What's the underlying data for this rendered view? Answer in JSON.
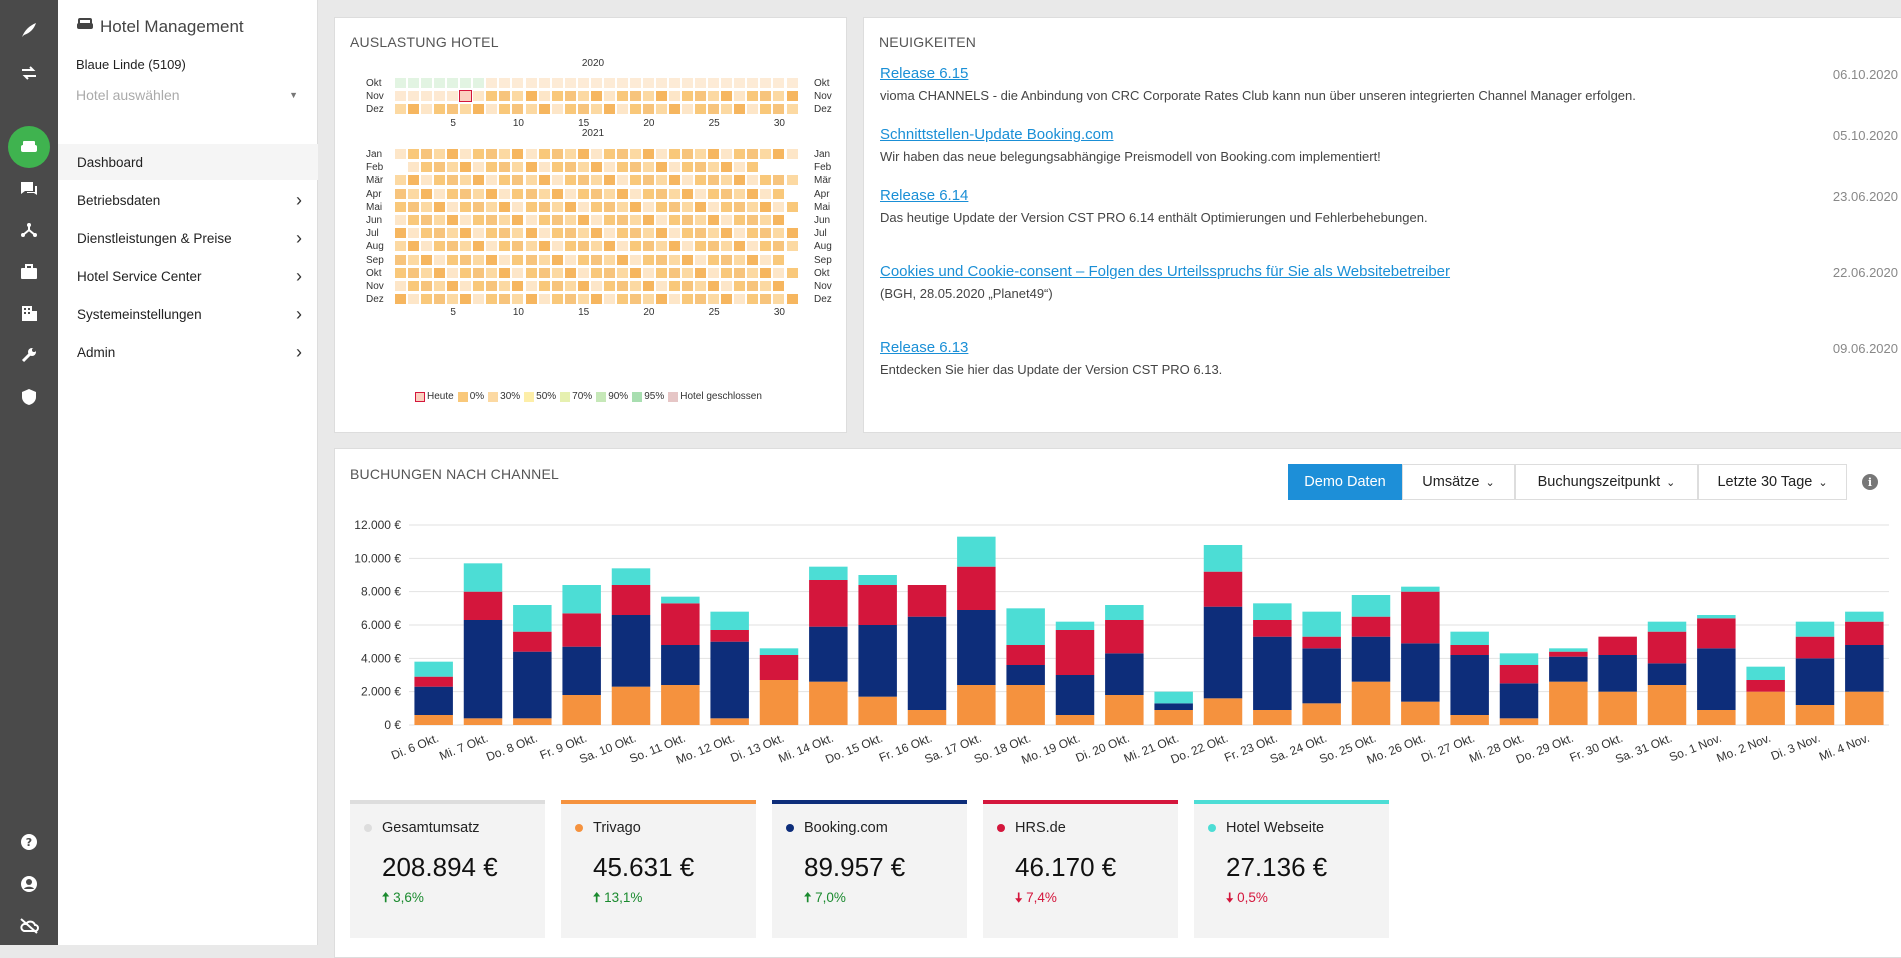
{
  "app": {
    "title": "Hotel Management",
    "hotel": "Blaue Linde (5109)",
    "hotel_select_placeholder": "Hotel auswählen"
  },
  "rail": {
    "icons": [
      "feather-icon",
      "swap-icon",
      "hotel-icon",
      "chat-icon",
      "network-icon",
      "briefcase-icon",
      "building-icon",
      "wrench-icon",
      "shield-icon",
      "help-icon",
      "user-icon",
      "cloud-off-icon"
    ]
  },
  "nav": [
    {
      "label": "Dashboard",
      "active": true,
      "has_children": false
    },
    {
      "label": "Betriebsdaten",
      "active": false,
      "has_children": true
    },
    {
      "label": "Dienstleistungen & Preise",
      "active": false,
      "has_children": true
    },
    {
      "label": "Hotel Service Center",
      "active": false,
      "has_children": true
    },
    {
      "label": "Systemeinstellungen",
      "active": false,
      "has_children": true
    },
    {
      "label": "Admin",
      "active": false,
      "has_children": true
    }
  ],
  "occupancy": {
    "title": "Auslastung Hotel",
    "years": [
      "2020",
      "2021"
    ],
    "rows_2020": [
      "Okt",
      "Nov",
      "Dez"
    ],
    "rows_2021": [
      "Jan",
      "Feb",
      "Mär",
      "Apr",
      "Mai",
      "Jun",
      "Jul",
      "Aug",
      "Sep",
      "Okt",
      "Nov",
      "Dez"
    ],
    "day_ticks": [
      "5",
      "10",
      "15",
      "20",
      "25",
      "30"
    ],
    "legend": [
      "Heute",
      "0%",
      "30%",
      "50%",
      "70%",
      "90%",
      "95%",
      "Hotel geschlossen"
    ]
  },
  "news": {
    "title": "Neuigkeiten",
    "items": [
      {
        "title": "Release 6.15",
        "date": "06.10.2020",
        "text": "vioma CHANNELS - die Anbindung von CRC Corporate Rates Club kann nun über unseren integrierten Channel Manager erfolgen."
      },
      {
        "title": "Schnittstellen-Update Booking.com",
        "date": "05.10.2020",
        "text": "Wir haben das neue belegungsabhängige Preismodell von Booking.com implementiert!"
      },
      {
        "title": "Release 6.14",
        "date": "23.06.2020",
        "text": "Das heutige Update der Version CST PRO 6.14 enthält Optimierungen und Fehlerbehebungen."
      },
      {
        "title": "Cookies und Cookie-consent – Folgen des Urteilsspruchs für Sie als Websitebetreiber",
        "date": "22.06.2020",
        "text": "(BGH, 28.05.2020 „Planet49“)"
      },
      {
        "title": "Release 6.13",
        "date": "09.06.2020",
        "text": "Entdecken Sie hier das Update der Version CST PRO 6.13."
      }
    ]
  },
  "bookings": {
    "title": "Buchungen nach Channel",
    "buttons": {
      "demo": "Demo Daten",
      "metric": "Umsätze",
      "time": "Buchungszeitpunkt",
      "range": "Letzte 30 Tage"
    },
    "info_icon": "info-icon"
  },
  "chart_data": {
    "type": "bar",
    "stacked": true,
    "categories": [
      "Di. 6 Okt.",
      "Mi. 7 Okt.",
      "Do. 8 Okt.",
      "Fr. 9 Okt.",
      "Sa. 10 Okt.",
      "So. 11 Okt.",
      "Mo. 12 Okt.",
      "Di. 13 Okt.",
      "Mi. 14 Okt.",
      "Do. 15 Okt.",
      "Fr. 16 Okt.",
      "Sa. 17 Okt.",
      "So. 18 Okt.",
      "Mo. 19 Okt.",
      "Di. 20 Okt.",
      "Mi. 21 Okt.",
      "Do. 22 Okt.",
      "Fr. 23 Okt.",
      "Sa. 24 Okt.",
      "So. 25 Okt.",
      "Mo. 26 Okt.",
      "Di. 27 Okt.",
      "Mi. 28 Okt.",
      "Do. 29 Okt.",
      "Fr. 30 Okt.",
      "Sa. 31 Okt.",
      "So. 1 Nov.",
      "Mo. 2 Nov.",
      "Di. 3 Nov.",
      "Mi. 4 Nov."
    ],
    "series": [
      {
        "name": "Trivago",
        "color": "#f5923e",
        "values": [
          600,
          400,
          400,
          1800,
          2300,
          2400,
          400,
          2700,
          2600,
          1700,
          900,
          2400,
          2400,
          600,
          1800,
          900,
          1600,
          900,
          1300,
          2600,
          1400,
          600,
          400,
          2600,
          2000,
          2400,
          900,
          2000,
          1200,
          2000
        ]
      },
      {
        "name": "Booking.com",
        "color": "#0d2d7a",
        "values": [
          1700,
          5900,
          4000,
          2900,
          4300,
          2400,
          4600,
          0,
          3300,
          4300,
          5600,
          4500,
          1200,
          2400,
          2500,
          400,
          5500,
          4400,
          3300,
          2700,
          3500,
          3600,
          2100,
          1500,
          2200,
          1300,
          3700,
          0,
          2800,
          2800
        ]
      },
      {
        "name": "HRS.de",
        "color": "#d4163c",
        "values": [
          600,
          1700,
          1200,
          2000,
          1800,
          2500,
          700,
          1500,
          2800,
          2400,
          1900,
          2600,
          1200,
          2700,
          2000,
          0,
          2100,
          1000,
          700,
          1200,
          3100,
          600,
          1100,
          300,
          1100,
          1900,
          1800,
          700,
          1300,
          1400
        ]
      },
      {
        "name": "Hotel Webseite",
        "color": "#4cddd5",
        "values": [
          900,
          1700,
          1600,
          1700,
          1000,
          400,
          1100,
          400,
          800,
          600,
          0,
          1800,
          2200,
          500,
          900,
          700,
          1600,
          1000,
          1500,
          1300,
          300,
          800,
          700,
          200,
          0,
          600,
          200,
          800,
          900,
          600
        ]
      }
    ],
    "y_ticks": [
      "0 €",
      "2.000 €",
      "4.000 €",
      "6.000 €",
      "8.000 €",
      "10.000 €",
      "12.000 €"
    ],
    "ylim": [
      0,
      12000
    ]
  },
  "kpis": [
    {
      "name": "Gesamtumsatz",
      "value": "208.894 €",
      "change": "3,6%",
      "direction": "up",
      "color": "#dddddd"
    },
    {
      "name": "Trivago",
      "value": "45.631 €",
      "change": "13,1%",
      "direction": "up",
      "color": "#f5923e"
    },
    {
      "name": "Booking.com",
      "value": "89.957 €",
      "change": "7,0%",
      "direction": "up",
      "color": "#0d2d7a"
    },
    {
      "name": "HRS.de",
      "value": "46.170 €",
      "change": "7,4%",
      "direction": "down",
      "color": "#d4163c"
    },
    {
      "name": "Hotel Webseite",
      "value": "27.136 €",
      "change": "0,5%",
      "direction": "down",
      "color": "#4cddd5"
    }
  ]
}
